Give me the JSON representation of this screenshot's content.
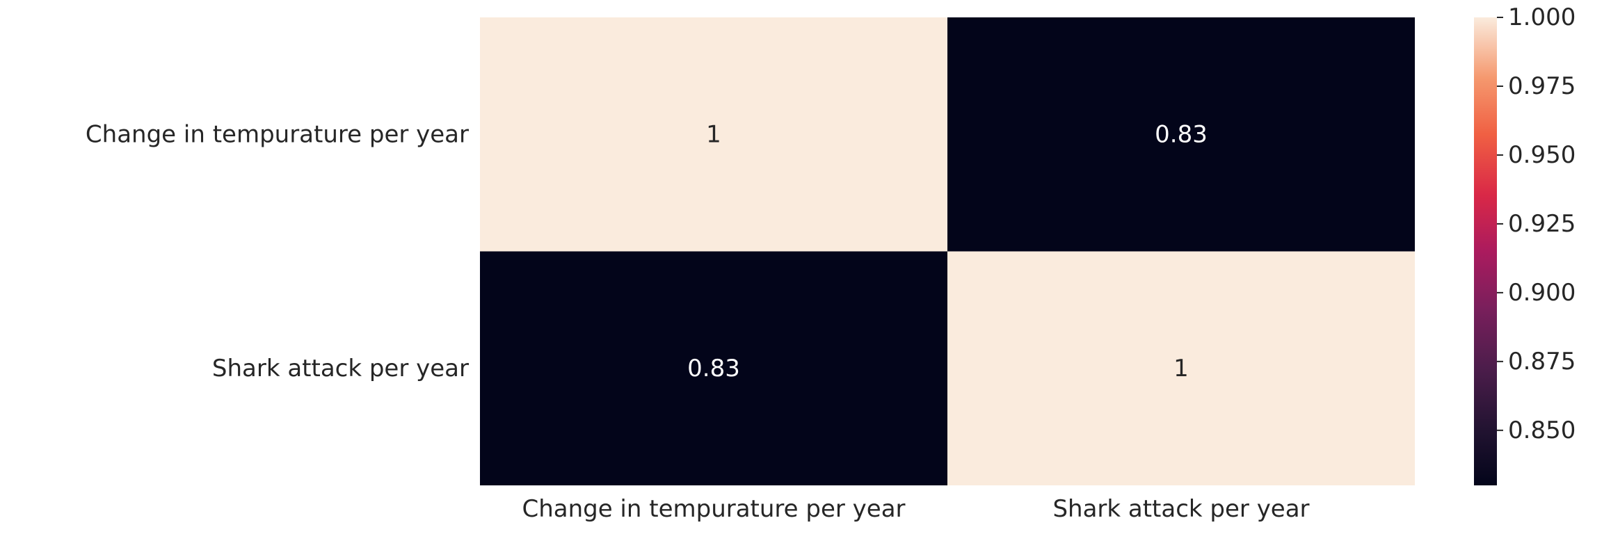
{
  "chart_data": {
    "type": "heatmap",
    "title": "",
    "xlabel": "",
    "ylabel": "",
    "x_categories": [
      "Change in tempurature per year",
      "Shark attack per year"
    ],
    "y_categories": [
      "Change in tempurature per year",
      "Shark attack per year"
    ],
    "values": [
      [
        1,
        0.83
      ],
      [
        0.83,
        1
      ]
    ],
    "annotations": [
      [
        "1",
        "0.83"
      ],
      [
        "0.83",
        "1"
      ]
    ],
    "colorbar": {
      "min": 0.83,
      "max": 1.0,
      "ticks": [
        0.85,
        0.875,
        0.9,
        0.925,
        0.95,
        0.975,
        1.0
      ],
      "tick_labels": [
        "0.850",
        "0.875",
        "0.900",
        "0.925",
        "0.950",
        "0.975",
        "1.000"
      ],
      "colormap": "rocket"
    },
    "colors": {
      "low": "#03051a",
      "high": "#faebdd",
      "annotation_on_dark": "#ffffff",
      "annotation_on_light": "#262626",
      "tick_text": "#262626"
    }
  }
}
